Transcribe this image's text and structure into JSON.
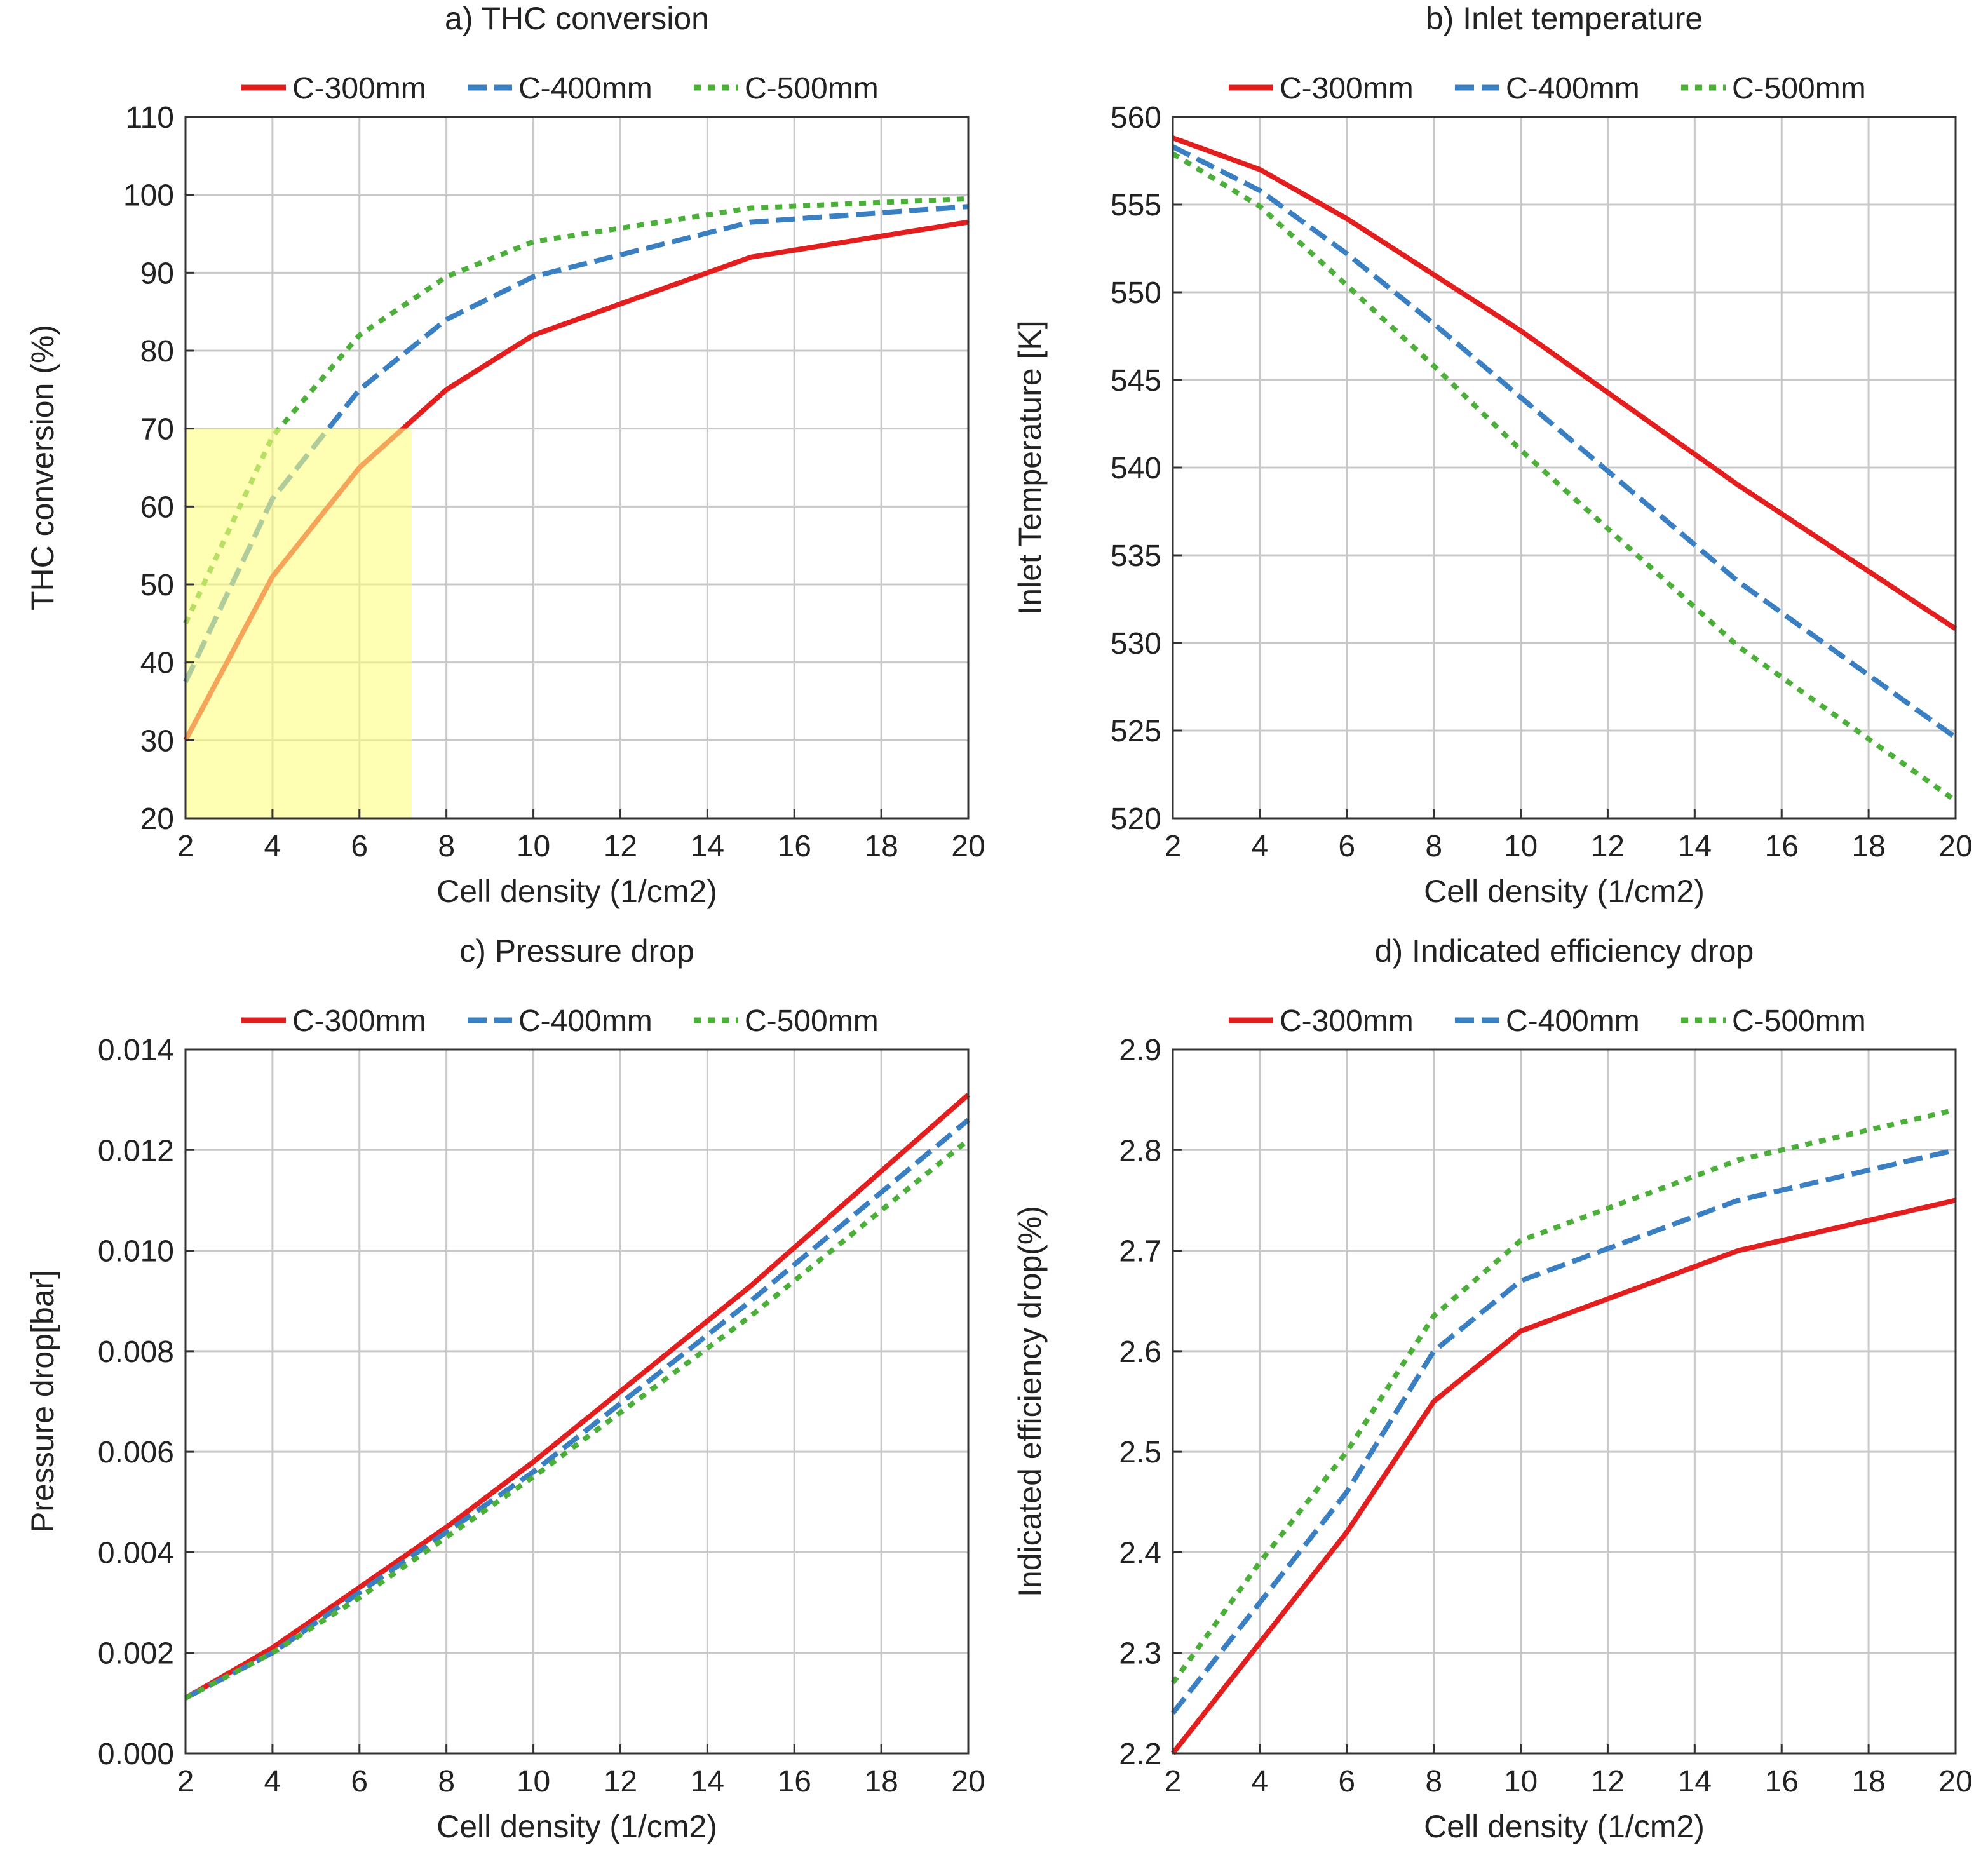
{
  "chart_data": [
    {
      "type": "line",
      "title": "a) THC conversion",
      "xlabel": "Cell density (1/cm2)",
      "ylabel": "THC conversion (%)",
      "xlim": [
        2,
        20
      ],
      "ylim": [
        20,
        110
      ],
      "xticks": [
        2,
        4,
        6,
        8,
        10,
        12,
        14,
        16,
        18,
        20
      ],
      "yticks": [
        20,
        30,
        40,
        50,
        60,
        70,
        80,
        90,
        100,
        110
      ],
      "ytick_decimals": 0,
      "grid": true,
      "legend": "top",
      "highlight": {
        "x": [
          2,
          7.2
        ],
        "y": [
          20,
          70
        ],
        "color": "#ffff80"
      },
      "x": [
        2,
        4,
        6,
        8,
        10,
        15,
        20
      ],
      "series": [
        {
          "name": "C-300mm",
          "style": "solid",
          "color": "#e31e1e",
          "values": [
            30,
            51,
            65,
            75,
            82,
            92,
            96.5
          ]
        },
        {
          "name": "C-400mm",
          "style": "dashed",
          "color": "#3a7fc1",
          "values": [
            37.5,
            61,
            75,
            84,
            89.5,
            96.5,
            98.5
          ]
        },
        {
          "name": "C-500mm",
          "style": "dotted",
          "color": "#4caf3a",
          "values": [
            45,
            69,
            82,
            89.5,
            94,
            98.3,
            99.5
          ]
        }
      ]
    },
    {
      "type": "line",
      "title": "b) Inlet temperature",
      "xlabel": "Cell density (1/cm2)",
      "ylabel": "Inlet Temperature [K]",
      "xlim": [
        2,
        20
      ],
      "ylim": [
        520,
        560
      ],
      "xticks": [
        2,
        4,
        6,
        8,
        10,
        12,
        14,
        16,
        18,
        20
      ],
      "yticks": [
        520,
        525,
        530,
        535,
        540,
        545,
        550,
        555,
        560
      ],
      "ytick_decimals": 0,
      "grid": true,
      "legend": "top",
      "x": [
        2,
        4,
        6,
        8,
        10,
        15,
        20
      ],
      "series": [
        {
          "name": "C-300mm",
          "style": "solid",
          "color": "#e31e1e",
          "values": [
            558.8,
            557,
            554.2,
            551,
            547.8,
            539,
            530.8
          ]
        },
        {
          "name": "C-400mm",
          "style": "dashed",
          "color": "#3a7fc1",
          "values": [
            558.3,
            555.8,
            552.2,
            548.2,
            544,
            533.5,
            524.6
          ]
        },
        {
          "name": "C-500mm",
          "style": "dotted",
          "color": "#4caf3a",
          "values": [
            557.9,
            554.9,
            550.4,
            545.8,
            541,
            529.8,
            521
          ]
        }
      ]
    },
    {
      "type": "line",
      "title": "c) Pressure drop",
      "xlabel": "Cell density (1/cm2)",
      "ylabel": "Pressure drop[bar]",
      "xlim": [
        2,
        20
      ],
      "ylim": [
        0,
        0.014
      ],
      "xticks": [
        2,
        4,
        6,
        8,
        10,
        12,
        14,
        16,
        18,
        20
      ],
      "yticks": [
        0,
        0.002,
        0.004,
        0.006,
        0.008,
        0.01,
        0.012,
        0.014
      ],
      "ytick_decimals": 3,
      "grid": true,
      "legend": "top",
      "x": [
        2,
        4,
        6,
        8,
        10,
        15,
        20
      ],
      "series": [
        {
          "name": "C-300mm",
          "style": "solid",
          "color": "#e31e1e",
          "values": [
            0.0011,
            0.0021,
            0.0033,
            0.0045,
            0.0058,
            0.0093,
            0.0131
          ]
        },
        {
          "name": "C-400mm",
          "style": "dashed",
          "color": "#3a7fc1",
          "values": [
            0.0011,
            0.002,
            0.0032,
            0.0044,
            0.0056,
            0.009,
            0.0126
          ]
        },
        {
          "name": "C-500mm",
          "style": "dotted",
          "color": "#4caf3a",
          "values": [
            0.0011,
            0.002,
            0.0031,
            0.0043,
            0.0055,
            0.0087,
            0.0122
          ]
        }
      ]
    },
    {
      "type": "line",
      "title": "d) Indicated efficiency drop",
      "xlabel": "Cell density (1/cm2)",
      "ylabel": "Indicated efficiency drop(%)",
      "xlim": [
        2,
        20
      ],
      "ylim": [
        2.2,
        2.9
      ],
      "xticks": [
        2,
        4,
        6,
        8,
        10,
        12,
        14,
        16,
        18,
        20
      ],
      "yticks": [
        2.2,
        2.3,
        2.4,
        2.5,
        2.6,
        2.7,
        2.8,
        2.9
      ],
      "ytick_decimals": 1,
      "grid": true,
      "legend": "top",
      "x": [
        2,
        4,
        6,
        8,
        10,
        15,
        20
      ],
      "series": [
        {
          "name": "C-300mm",
          "style": "solid",
          "color": "#e31e1e",
          "values": [
            2.2,
            2.31,
            2.42,
            2.55,
            2.62,
            2.7,
            2.75
          ]
        },
        {
          "name": "C-400mm",
          "style": "dashed",
          "color": "#3a7fc1",
          "values": [
            2.24,
            2.35,
            2.46,
            2.6,
            2.67,
            2.75,
            2.8
          ]
        },
        {
          "name": "C-500mm",
          "style": "dotted",
          "color": "#4caf3a",
          "values": [
            2.27,
            2.39,
            2.5,
            2.635,
            2.71,
            2.79,
            2.84
          ]
        }
      ]
    }
  ]
}
